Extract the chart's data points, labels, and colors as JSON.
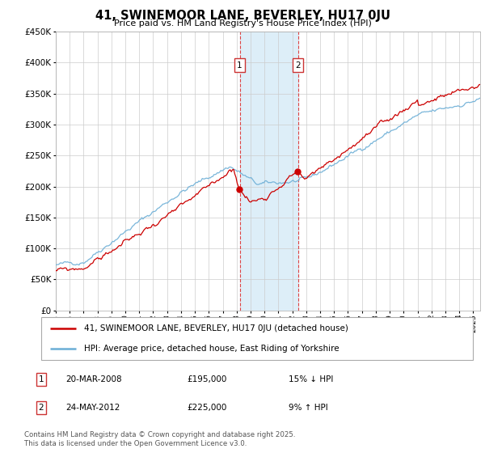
{
  "title": "41, SWINEMOOR LANE, BEVERLEY, HU17 0JU",
  "subtitle": "Price paid vs. HM Land Registry's House Price Index (HPI)",
  "legend_line1": "41, SWINEMOOR LANE, BEVERLEY, HU17 0JU (detached house)",
  "legend_line2": "HPI: Average price, detached house, East Riding of Yorkshire",
  "transaction1_date": "20-MAR-2008",
  "transaction1_price": "£195,000",
  "transaction1_hpi": "15% ↓ HPI",
  "transaction2_date": "24-MAY-2012",
  "transaction2_price": "£225,000",
  "transaction2_hpi": "9% ↑ HPI",
  "footer": "Contains HM Land Registry data © Crown copyright and database right 2025.\nThis data is licensed under the Open Government Licence v3.0.",
  "hpi_color": "#6baed6",
  "price_color": "#cc0000",
  "shade_color": "#ddeef8",
  "marker1_x": 2008.22,
  "marker2_x": 2012.4,
  "ylim_max": 450000,
  "xlim_start": 1995,
  "xlim_end": 2025.5
}
